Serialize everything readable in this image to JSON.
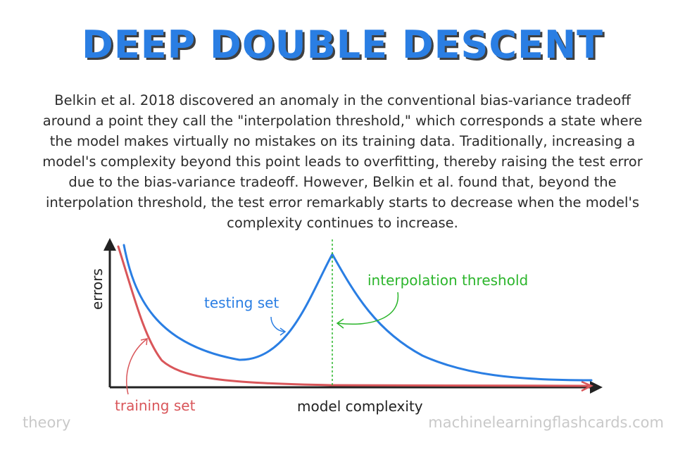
{
  "title": "DEEP DOUBLE DESCENT",
  "description": "Belkin et al. 2018 discovered an anomaly in the conventional bias-variance tradeoff around a point they call the \"interpolation threshold,\" which corresponds a state where the model makes virtually no mistakes on its training data. Traditionally, increasing a model's complexity beyond this point leads to overfitting, thereby raising the test error due to the bias-variance tradeoff. However, Belkin et al. found that, beyond the interpolation threshold, the test error remarkably starts to decrease when the model's complexity continues to increase.",
  "diagram": {
    "y_axis_label": "errors",
    "x_axis_label": "model complexity",
    "testing_label": "testing set",
    "training_label": "training set",
    "threshold_label": "interpolation threshold",
    "colors": {
      "testing": "#2a7ee3",
      "training": "#d9565a",
      "threshold": "#2bb52b",
      "axis": "#222222"
    }
  },
  "footer": {
    "left": "theory",
    "right": "machinelearningflashcards.com"
  }
}
